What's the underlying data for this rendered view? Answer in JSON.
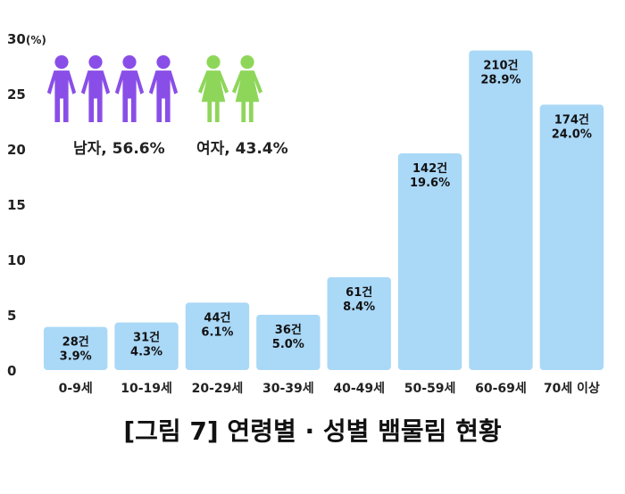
{
  "caption": "[그림 7] 연령별 · 성별 뱀물림 현황",
  "gender": {
    "male_label": "남자, 56.6%",
    "female_label": "여자, 43.4%",
    "male_icon_count": 4,
    "female_icon_count": 2,
    "male_color": "#8a4ee8",
    "female_color": "#8ed65a"
  },
  "chart_data": {
    "type": "bar",
    "title": "",
    "xlabel": "",
    "ylabel": "(%)",
    "ylim": [
      0,
      30
    ],
    "yticks": [
      0,
      5,
      10,
      15,
      20,
      25,
      30
    ],
    "ytick_labels": [
      "0",
      "5",
      "10",
      "15",
      "20",
      "25",
      "30"
    ],
    "grid": false,
    "bar_color": "#aad8f7",
    "categories": [
      "0-9세",
      "10-19세",
      "20-29세",
      "30-39세",
      "40-49세",
      "50-59세",
      "60-69세",
      "70세 이상"
    ],
    "values": [
      3.9,
      4.3,
      6.1,
      5.0,
      8.4,
      19.6,
      28.9,
      24.0
    ],
    "counts": [
      "28건",
      "31건",
      "44건",
      "36건",
      "61건",
      "142건",
      "210건",
      "174건"
    ],
    "percent_labels": [
      "3.9%",
      "4.3%",
      "6.1%",
      "5.0%",
      "8.4%",
      "19.6%",
      "28.9%",
      "24.0%"
    ]
  }
}
